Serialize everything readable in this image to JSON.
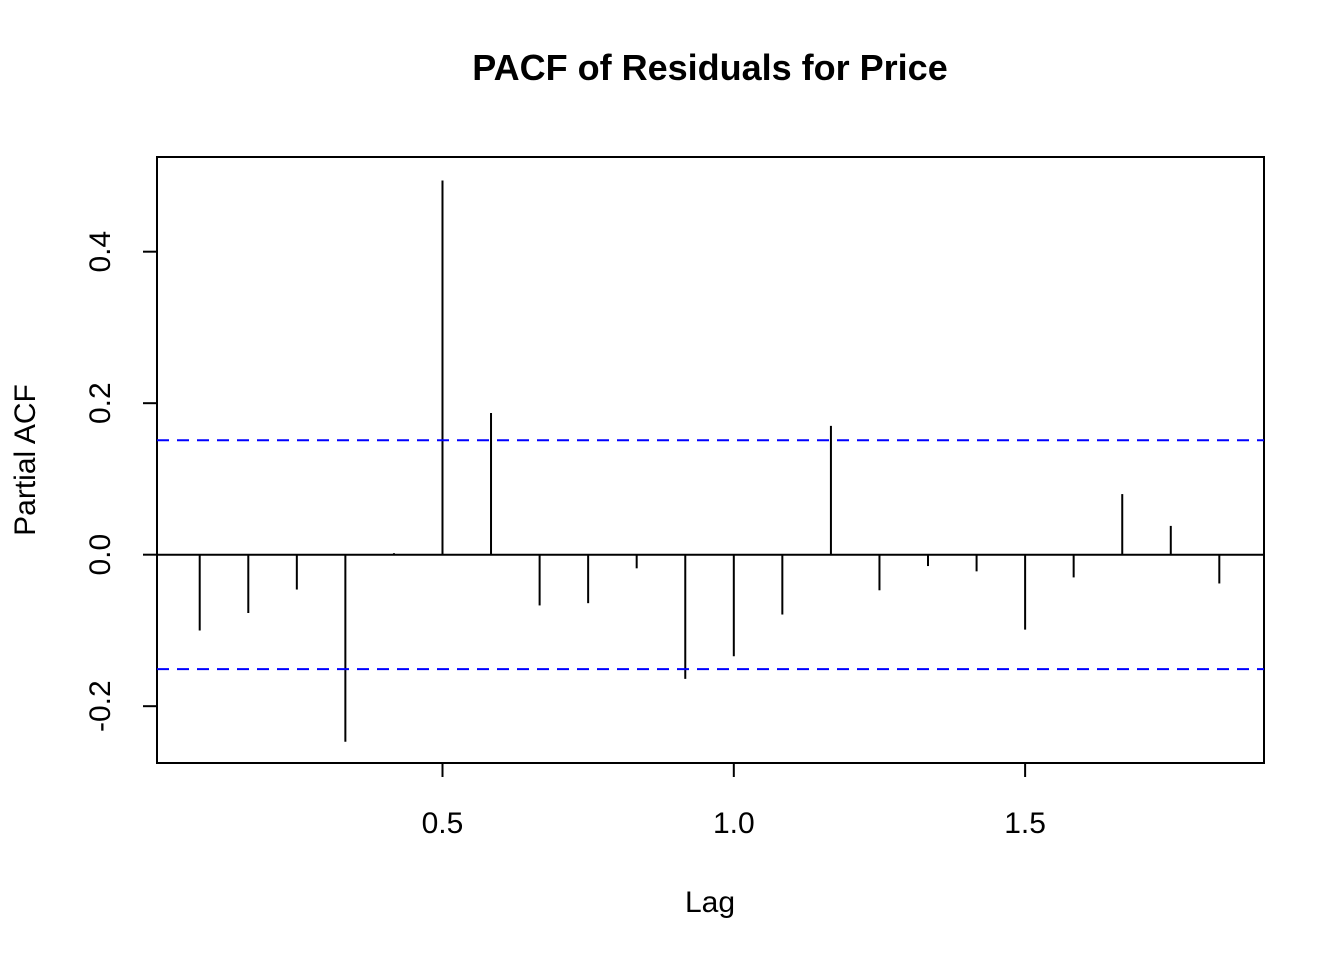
{
  "chart_data": {
    "type": "bar",
    "title": "PACF of Residuals for Price",
    "xlabel": "Lag",
    "ylabel": "Partial ACF",
    "xlim": [
      0.01,
      1.91
    ],
    "ylim": [
      -0.275,
      0.525
    ],
    "x_ticks": [
      0.5,
      1.0,
      1.5
    ],
    "x_tick_labels": [
      "0.5",
      "1.0",
      "1.5"
    ],
    "y_ticks": [
      -0.2,
      0.0,
      0.2,
      0.4
    ],
    "y_tick_labels": [
      "-0.2",
      "0.0",
      "0.2",
      "0.4"
    ],
    "confidence_bound": 0.151,
    "grid": false,
    "series": [
      {
        "x": [
          0.0833,
          0.1667,
          0.25,
          0.3333,
          0.4167,
          0.5,
          0.5833,
          0.6667,
          0.75,
          0.8333,
          0.9167,
          1.0,
          1.0833,
          1.1667,
          1.25,
          1.3333,
          1.4167,
          1.5,
          1.5833,
          1.6667,
          1.75,
          1.8333
        ],
        "values": [
          -0.1,
          -0.077,
          -0.046,
          -0.247,
          0.002,
          0.494,
          0.187,
          -0.067,
          -0.064,
          -0.018,
          -0.164,
          -0.134,
          -0.079,
          0.17,
          -0.047,
          -0.015,
          -0.022,
          -0.099,
          -0.03,
          0.08,
          0.038,
          -0.038
        ]
      }
    ],
    "colors": {
      "bars": "#000000",
      "confidence_lines": "#0000ff",
      "axes": "#000000"
    }
  }
}
